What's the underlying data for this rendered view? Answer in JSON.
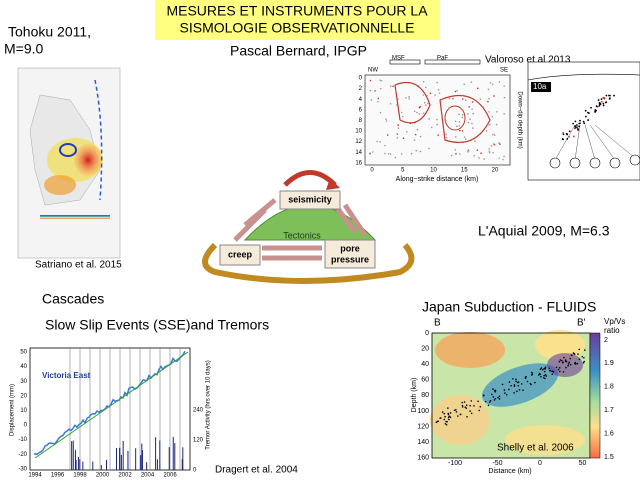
{
  "header": {
    "title_line1": "MESURES ET INSTRUMENTS POUR LA",
    "title_line2": "SISMOLOGIE OBSERVATIONNELLE",
    "author": "Pascal Bernard, IPGP"
  },
  "tohoku": {
    "title_line1": "Tohoku  2011,",
    "title_line2": " M=9.0",
    "credit": "Satriano et al. 2015"
  },
  "aquila": {
    "title": "L'Aquial 2009, M=6.3",
    "credit": "Valoroso et al 2013",
    "labels": [
      "MSF",
      "PaF",
      "NW",
      "SE"
    ],
    "x_axis": "Along−strike distance (km)",
    "x_ticks": [
      0,
      5,
      10,
      15,
      20
    ],
    "y_ticks": [
      0,
      2,
      4,
      6,
      8,
      10,
      12,
      14,
      16
    ],
    "y_axis": "Down−dip depth (km)",
    "panel": "10a"
  },
  "diagram": {
    "top": "seismicity",
    "left": "creep",
    "right_line1": "pore",
    "right_line2": "pressure",
    "center": "Tectonics"
  },
  "cascades": {
    "title": "Cascades",
    "subtitle": " Slow Slip Events (SSE)and Tremors",
    "plot_label": "Victoria East",
    "y_axis": "Displacement (mm)",
    "y_ticks": [
      50,
      40,
      30,
      20,
      10,
      0,
      -10,
      -20,
      -30
    ],
    "y2_axis": "Tremor Activity (hrs over 10 days)",
    "y2_ticks": [
      240,
      120,
      0
    ],
    "x_ticks": [
      1994,
      1996,
      1998,
      2000,
      2002,
      2004,
      2006
    ],
    "credit": "Dragert et al. 2004"
  },
  "japan": {
    "title": "Japan Subduction - FLUIDS",
    "left_label": "B",
    "right_label": "B'",
    "y_axis": "Depth (km)",
    "y_ticks": [
      0,
      20,
      40,
      60,
      80,
      100,
      120,
      140,
      160
    ],
    "x_axis": "Distance (km)",
    "x_ticks": [
      -100,
      -50,
      0,
      50
    ],
    "colorbar_title_line1": "Vp/Vs",
    "colorbar_title_line2": "ratio",
    "colorbar_ticks": [
      2,
      1.9,
      1.8,
      1.7,
      1.6,
      1.5
    ],
    "credit": "Shelly et al. 2006"
  }
}
